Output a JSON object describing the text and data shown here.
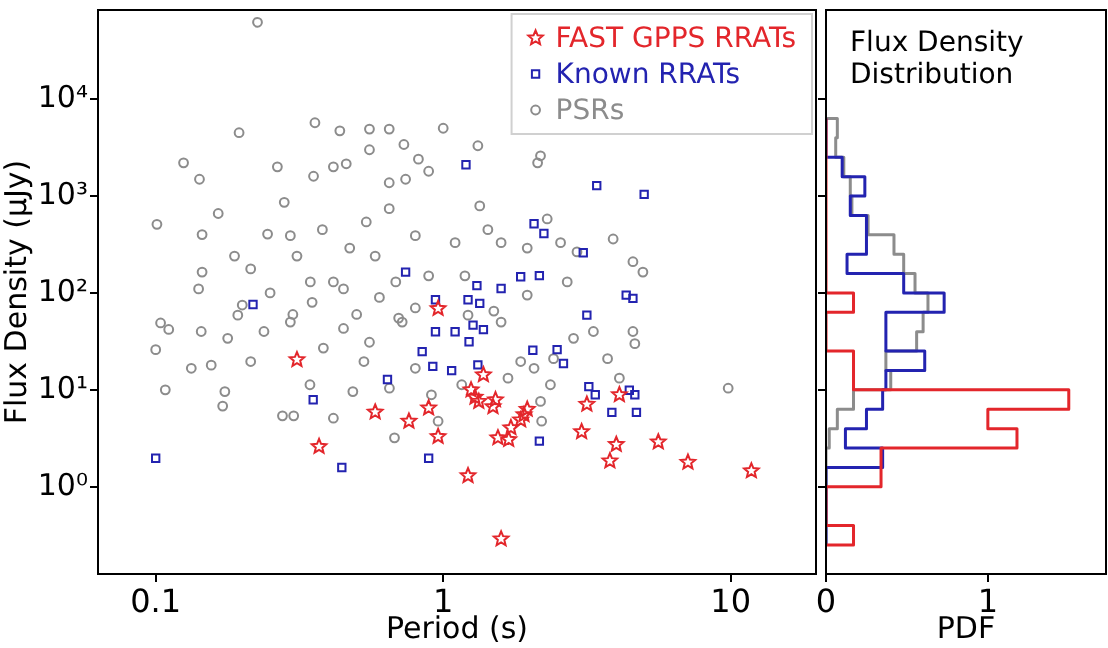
{
  "chart_data": [
    {
      "type": "scatter",
      "xlabel": "Period (s)",
      "ylabel": "Flux Density (μJy)",
      "log": "xy",
      "legend": "top right",
      "xlim": [
        0.063,
        19.8
      ],
      "ylim": [
        0.126,
        83000
      ],
      "xticks": [
        0.1,
        1,
        10
      ],
      "yticks": [
        {
          "value": 1,
          "label": "10⁰"
        },
        {
          "value": 10,
          "label": "10¹"
        },
        {
          "value": 100,
          "label": "10²"
        },
        {
          "value": 1000,
          "label": "10³"
        },
        {
          "value": 10000,
          "label": "10⁴"
        }
      ],
      "series": [
        {
          "name": "FAST GPPS RRATs",
          "color": "#e3262b",
          "marker": "star",
          "x": [
            0.31,
            0.37,
            0.58,
            0.76,
            0.89,
            0.96,
            0.96,
            1.22,
            1.25,
            1.29,
            1.33,
            1.38,
            1.49,
            1.52,
            1.55,
            1.59,
            1.69,
            1.72,
            1.86,
            1.91,
            1.96,
            3.03,
            3.16,
            3.8,
            4.0,
            4.1,
            5.6,
            7.1,
            11.8
          ],
          "values": [
            20.5,
            2.6,
            5.9,
            4.75,
            6.5,
            3.3,
            69,
            1.3,
            10,
            8.4,
            7.6,
            14.3,
            6.7,
            7.9,
            3.2,
            0.29,
            3.07,
            4.06,
            4.9,
            5.55,
            6.3,
            3.7,
            7.1,
            1.85,
            2.73,
            8.9,
            2.9,
            1.79,
            1.46
          ]
        },
        {
          "name": "Known RRATs",
          "color": "#2323b0",
          "marker": "square",
          "x": [
            0.1,
            0.218,
            0.353,
            0.444,
            0.64,
            0.845,
            0.89,
            0.92,
            0.94,
            1.07,
            1.1,
            1.23,
            1.27,
            1.32,
            1.38,
            2.05,
            2.16,
            2.49,
            2.62,
            3.16,
            3.21,
            3.38,
            3.86,
            4.44,
            4.64,
            4.7,
            1.2,
            3.42,
            5.0,
            2.07,
            2.24,
            3.07,
            1.59,
            1.86,
            2.16,
            0.74,
            0.94,
            1.22,
            1.31,
            1.34,
            4.33,
            4.57
          ],
          "values": [
            1.97,
            76,
            7.9,
            1.58,
            12.8,
            24.8,
            1.97,
            17.5,
            39.8,
            15.8,
            39.8,
            31.4,
            46.6,
            18.1,
            41.8,
            25.6,
            2.96,
            26,
            18.7,
            59,
            10.8,
            8.9,
            5.85,
            9.9,
            8.9,
            5.85,
            2100,
            1280,
            1040,
            518,
            410,
            260,
            111,
            147,
            151,
            164,
            85,
            85,
            119,
            78,
            95,
            88
          ]
        },
        {
          "name": "PSRs",
          "color": "#8c8c8c",
          "marker": "circle",
          "x": [
            0.226,
            0.101,
            0.125,
            0.142,
            0.165,
            0.195,
            0.358,
            0.437,
            0.554,
            0.649,
            0.554,
            0.73,
            0.82,
            1.0,
            1.32,
            2.13,
            2.18,
            0.265,
            0.354,
            0.415,
            0.46,
            0.649,
            0.74,
            0.89,
            1.34,
            0.145,
            0.145,
            0.141,
            0.188,
            0.214,
            0.245,
            0.28,
            0.294,
            0.31,
            0.345,
            0.38,
            0.415,
            0.473,
            0.54,
            0.58,
            0.649,
            0.684,
            0.8,
            0.89,
            1.1,
            1.19,
            1.43,
            1.59,
            1.96,
            2.3,
            2.56,
            2.92,
            3.9,
            4.57,
            4.95,
            2.7,
            1.96,
            0.1,
            0.104,
            0.111,
            0.108,
            0.133,
            0.144,
            0.156,
            0.171,
            0.174,
            0.178,
            0.193,
            0.214,
            0.238,
            0.276,
            0.302,
            0.294,
            0.344,
            0.383,
            0.415,
            0.45,
            0.485,
            0.53,
            0.554,
            0.65,
            0.677,
            0.72,
            0.8,
            0.91,
            0.96,
            1.16,
            1.22,
            1.59,
            1.68,
            1.86,
            2.07,
            2.18,
            2.2,
            2.42,
            2.36,
            2.84,
            3.33,
            3.73,
            4.57,
            4.64,
            9.8,
            4.1,
            0.25,
            0.35,
            0.45,
            0.6,
            0.8,
            1.5,
            0.2,
            0.3,
            0.5,
            0.7
          ],
          "values": [
            62000,
            510,
            2200,
            1490,
            660,
            4500,
            5700,
            4700,
            4900,
            4900,
            3000,
            3400,
            2400,
            5000,
            3300,
            2200,
            2600,
            2000,
            1600,
            2000,
            2150,
            1370,
            1490,
            1800,
            790,
            400,
            164,
            110,
            240,
            177,
            405,
            860,
            390,
            240,
            130,
            450,
            130,
            290,
            540,
            240,
            740,
            130,
            390,
            150,
            330,
            150,
            450,
            330,
            290,
            580,
            330,
            265,
            360,
            210,
            164,
            130,
            95,
            26,
            49,
            42,
            10,
            16.7,
            40,
            18,
            6.8,
            9.6,
            34,
            59,
            19.6,
            40,
            5.4,
            5.4,
            50,
            11.3,
            27,
            5.1,
            43,
            9.6,
            19.6,
            31,
            10.4,
            3.2,
            50,
            16.7,
            8.9,
            4.75,
            11.3,
            59,
            50,
            13.2,
            19.6,
            16.7,
            7.6,
            4.75,
            21,
            11.3,
            34,
            40,
            21,
            40,
            30,
            10.4,
            13.2,
            100,
            80,
            110,
            90,
            70,
            65,
            75,
            60,
            60,
            55
          ]
        }
      ]
    },
    {
      "type": "histogram",
      "orientation": "horizontal",
      "xlabel": "PDF",
      "log": "y",
      "tick_labels": "x",
      "annotations": [
        "Flux Density\nDistribution"
      ],
      "xlim": [
        0,
        1.73
      ],
      "xticks": [
        0,
        1
      ],
      "ylim": [
        0.126,
        83000
      ],
      "yticks": [
        {
          "value": 1,
          "label": null
        },
        {
          "value": 10,
          "label": null
        },
        {
          "value": 100,
          "label": null
        },
        {
          "value": 1000,
          "label": null
        },
        {
          "value": 10000,
          "label": null
        }
      ],
      "bins": [
        0.251,
        0.398,
        0.631,
        1,
        1.585,
        2.512,
        3.981,
        6.31,
        10,
        15.85,
        25.12,
        39.81,
        63.1,
        100,
        158.5,
        251.2,
        398.1,
        631,
        1000,
        1585,
        2512,
        3981,
        6310
      ],
      "series": [
        {
          "color": "#e3262b",
          "values": [
            0.17,
            0,
            0,
            0.34,
            0.34,
            1.18,
            1.0,
            1.5,
            0.17,
            0.17,
            0,
            0,
            0.17,
            0,
            0,
            0,
            0,
            0,
            0,
            0,
            0,
            0
          ]
        },
        {
          "color": "#2323b0",
          "values": [
            0,
            0,
            0,
            0,
            0.35,
            0.12,
            0.25,
            0.35,
            0.37,
            0.61,
            0.37,
            0.37,
            0.73,
            0.48,
            0.13,
            0.25,
            0.25,
            0.15,
            0.24,
            0.1,
            0,
            0
          ]
        },
        {
          "color": "#8c8c8c",
          "values": [
            0,
            0,
            0,
            0,
            0,
            0.02,
            0.07,
            0.17,
            0.4,
            0.37,
            0.56,
            0.6,
            0.63,
            0.55,
            0.48,
            0.42,
            0.26,
            0.16,
            0.15,
            0.11,
            0.06,
            0.07
          ]
        }
      ]
    }
  ]
}
